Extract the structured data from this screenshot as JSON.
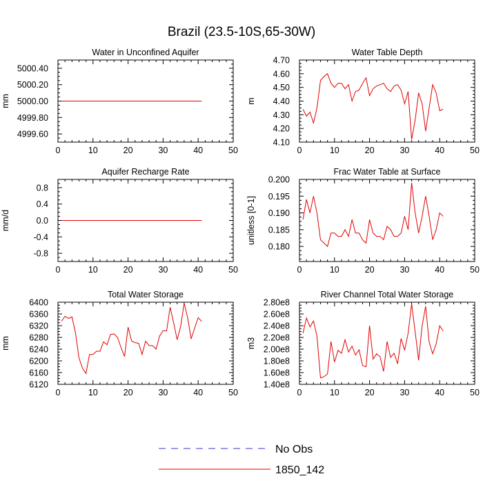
{
  "title": "Brazil (23.5-10S,65-30W)",
  "colors": {
    "series": "#e00000",
    "obs": "#3a3acc",
    "axis": "#000000"
  },
  "legend": {
    "obs_label": "No Obs",
    "model_label": "1850_142"
  },
  "chart_data": [
    {
      "type": "line",
      "title": "Water in Unconfined Aquifer",
      "ylabel": "mm",
      "xlim": [
        0,
        50
      ],
      "ylim": [
        4999.5,
        5000.5
      ],
      "xticks": [
        0,
        10,
        20,
        30,
        40,
        50
      ],
      "yticks": [
        4999.6,
        4999.8,
        5000.0,
        5000.2,
        5000.4
      ],
      "yticklabels": [
        "4999.60",
        "4999.80",
        "5000.00",
        "5000.20",
        "5000.40"
      ],
      "x": [
        1,
        41
      ],
      "series": [
        {
          "name": "1850_142",
          "values": [
            5000.0,
            5000.0
          ]
        }
      ]
    },
    {
      "type": "line",
      "title": "Water Table Depth",
      "ylabel": "m",
      "xlim": [
        0,
        50
      ],
      "ylim": [
        4.1,
        4.7
      ],
      "xticks": [
        0,
        10,
        20,
        30,
        40,
        50
      ],
      "yticks": [
        4.1,
        4.2,
        4.3,
        4.4,
        4.5,
        4.6,
        4.7
      ],
      "yticklabels": [
        "4.10",
        "4.20",
        "4.30",
        "4.40",
        "4.50",
        "4.60",
        "4.70"
      ],
      "x": [
        1,
        2,
        3,
        4,
        5,
        6,
        7,
        8,
        9,
        10,
        11,
        12,
        13,
        14,
        15,
        16,
        17,
        18,
        19,
        20,
        21,
        22,
        23,
        24,
        25,
        26,
        27,
        28,
        29,
        30,
        31,
        32,
        33,
        34,
        35,
        36,
        37,
        38,
        39,
        40,
        41
      ],
      "series": [
        {
          "name": "1850_142",
          "values": [
            4.34,
            4.29,
            4.32,
            4.24,
            4.35,
            4.55,
            4.58,
            4.6,
            4.53,
            4.5,
            4.53,
            4.53,
            4.49,
            4.52,
            4.4,
            4.47,
            4.48,
            4.53,
            4.57,
            4.44,
            4.49,
            4.51,
            4.52,
            4.53,
            4.49,
            4.47,
            4.51,
            4.52,
            4.48,
            4.38,
            4.47,
            4.12,
            4.26,
            4.46,
            4.38,
            4.18,
            4.35,
            4.52,
            4.46,
            4.33,
            4.34
          ]
        }
      ]
    },
    {
      "type": "line",
      "title": "Aquifer Recharge Rate",
      "ylabel": "mm/d",
      "xlim": [
        0,
        50
      ],
      "ylim": [
        -1.0,
        1.0
      ],
      "xticks": [
        0,
        10,
        20,
        30,
        40,
        50
      ],
      "yticks": [
        -0.8,
        -0.4,
        0.0,
        0.4,
        0.8
      ],
      "yticklabels": [
        "-0.8",
        "-0.4",
        "0.0",
        "0.4",
        "0.8"
      ],
      "x": [
        1,
        41
      ],
      "series": [
        {
          "name": "1850_142",
          "values": [
            0.0,
            0.0
          ]
        }
      ]
    },
    {
      "type": "line",
      "title": "Frac Water Table at Surface",
      "ylabel": "unitless [0-1]",
      "xlim": [
        0,
        50
      ],
      "ylim": [
        0.1755,
        0.2
      ],
      "xticks": [
        0,
        10,
        20,
        30,
        40,
        50
      ],
      "yticks": [
        0.18,
        0.185,
        0.19,
        0.195,
        0.2
      ],
      "yticklabels": [
        "0.180",
        "0.185",
        "0.190",
        "0.195",
        "0.200"
      ],
      "x": [
        1,
        2,
        3,
        4,
        5,
        6,
        7,
        8,
        9,
        10,
        11,
        12,
        13,
        14,
        15,
        16,
        17,
        18,
        19,
        20,
        21,
        22,
        23,
        24,
        25,
        26,
        27,
        28,
        29,
        30,
        31,
        32,
        33,
        34,
        35,
        36,
        37,
        38,
        39,
        40,
        41
      ],
      "series": [
        {
          "name": "1850_142",
          "values": [
            0.188,
            0.194,
            0.19,
            0.195,
            0.19,
            0.182,
            0.181,
            0.18,
            0.184,
            0.184,
            0.183,
            0.183,
            0.185,
            0.183,
            0.188,
            0.184,
            0.184,
            0.182,
            0.181,
            0.188,
            0.184,
            0.183,
            0.183,
            0.182,
            0.186,
            0.185,
            0.183,
            0.183,
            0.184,
            0.189,
            0.185,
            0.199,
            0.19,
            0.184,
            0.189,
            0.195,
            0.189,
            0.182,
            0.185,
            0.19,
            0.189
          ]
        }
      ]
    },
    {
      "type": "line",
      "title": "Total Water Storage",
      "ylabel": "mm",
      "xlim": [
        0,
        50
      ],
      "ylim": [
        6120,
        6400
      ],
      "xticks": [
        0,
        10,
        20,
        30,
        40,
        50
      ],
      "yticks": [
        6120,
        6160,
        6200,
        6240,
        6280,
        6320,
        6360,
        6400
      ],
      "yticklabels": [
        "6120",
        "6160",
        "6200",
        "6240",
        "6280",
        "6320",
        "6360",
        "6400"
      ],
      "x": [
        1,
        2,
        3,
        4,
        5,
        6,
        7,
        8,
        9,
        10,
        11,
        12,
        13,
        14,
        15,
        16,
        17,
        18,
        19,
        20,
        21,
        22,
        23,
        24,
        25,
        26,
        27,
        28,
        29,
        30,
        31,
        32,
        33,
        34,
        35,
        36,
        37,
        38,
        39,
        40,
        41
      ],
      "series": [
        {
          "name": "1850_142",
          "values": [
            6335,
            6352,
            6345,
            6350,
            6295,
            6210,
            6175,
            6157,
            6222,
            6222,
            6233,
            6233,
            6265,
            6255,
            6290,
            6292,
            6280,
            6245,
            6215,
            6315,
            6268,
            6262,
            6260,
            6222,
            6267,
            6252,
            6252,
            6240,
            6285,
            6303,
            6302,
            6383,
            6330,
            6272,
            6317,
            6397,
            6347,
            6275,
            6312,
            6347,
            6335
          ]
        }
      ]
    },
    {
      "type": "line",
      "title": "River Channel Total Water Storage",
      "ylabel": "m3",
      "xlim": [
        0,
        50
      ],
      "ylim": [
        140000000,
        280000000
      ],
      "xticks": [
        0,
        10,
        20,
        30,
        40,
        50
      ],
      "yticks": [
        140000000,
        160000000,
        180000000,
        200000000,
        220000000,
        240000000,
        260000000,
        280000000
      ],
      "yticklabels": [
        "1.40e8",
        "1.60e8",
        "1.80e8",
        "2.00e8",
        "2.20e8",
        "2.40e8",
        "2.60e8",
        "2.80e8"
      ],
      "x": [
        1,
        2,
        3,
        4,
        5,
        6,
        7,
        8,
        9,
        10,
        11,
        12,
        13,
        14,
        15,
        16,
        17,
        18,
        19,
        20,
        21,
        22,
        23,
        24,
        25,
        26,
        27,
        28,
        29,
        30,
        31,
        32,
        33,
        34,
        35,
        36,
        37,
        38,
        39,
        40,
        41
      ],
      "series": [
        {
          "name": "1850_142",
          "values": [
            227000000,
            253000000,
            238000000,
            248000000,
            222000000,
            151000000,
            153000000,
            158000000,
            213000000,
            178000000,
            198000000,
            193000000,
            216000000,
            195000000,
            205000000,
            190000000,
            199000000,
            172000000,
            170000000,
            240000000,
            183000000,
            192000000,
            187000000,
            162000000,
            213000000,
            186000000,
            193000000,
            175000000,
            218000000,
            198000000,
            227000000,
            277000000,
            230000000,
            181000000,
            240000000,
            273000000,
            212000000,
            192000000,
            209000000,
            240000000,
            231000000
          ]
        }
      ]
    }
  ]
}
